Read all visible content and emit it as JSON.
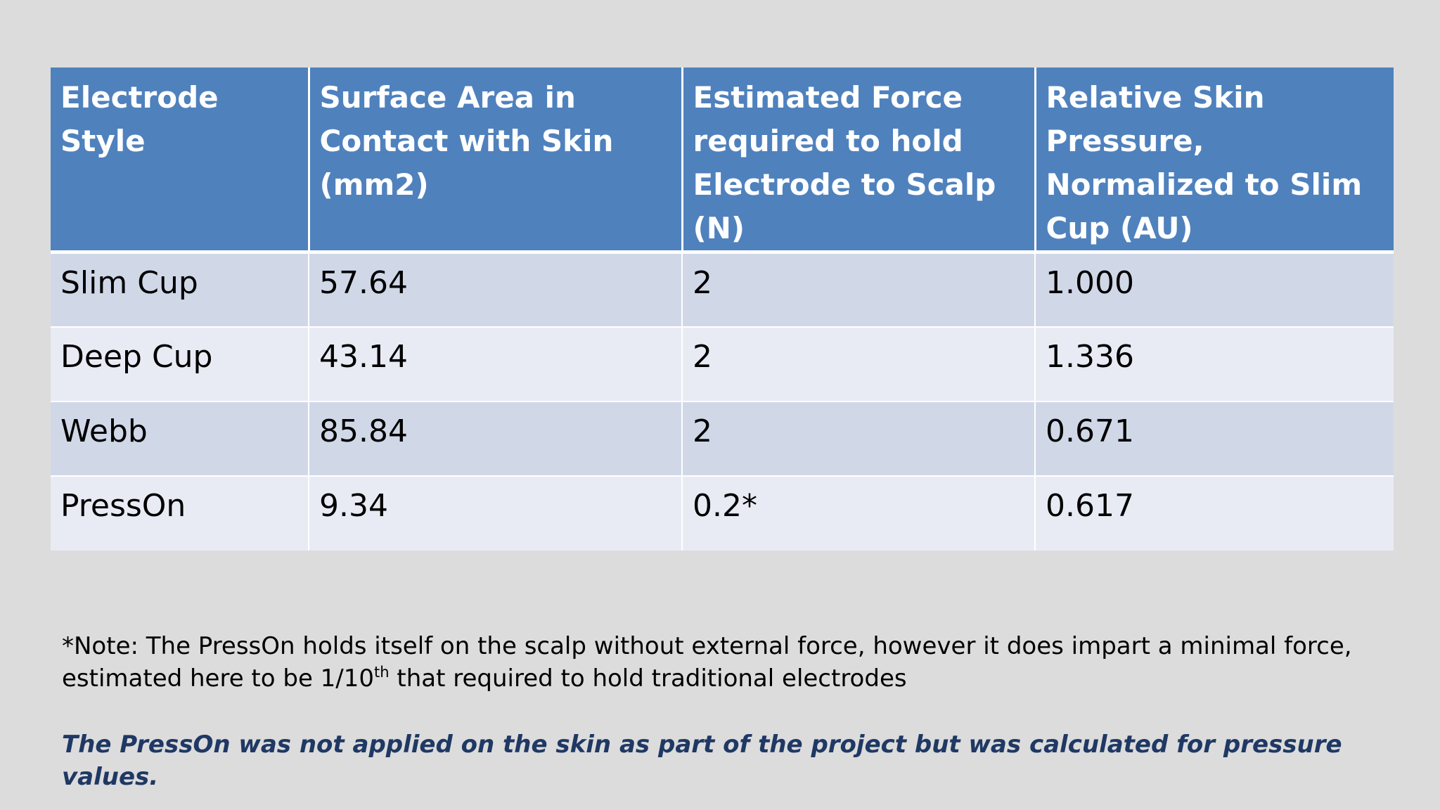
{
  "table": {
    "headers": [
      "Electrode Style",
      "Surface Area in Contact with Skin (mm2)",
      "Estimated Force required to hold Electrode to Scalp (N)",
      "Relative Skin Pressure, Normalized to Slim Cup (AU)"
    ],
    "rows": [
      [
        "Slim Cup",
        "57.64",
        "2",
        "1.000"
      ],
      [
        "Deep Cup",
        "43.14",
        "2",
        "1.336"
      ],
      [
        "Webb",
        "85.84",
        "2",
        "0.671"
      ],
      [
        "PressOn",
        "9.34",
        "0.2*",
        "0.617"
      ]
    ]
  },
  "note": {
    "part1": "*Note: The PressOn holds itself on the scalp without external force, however it does impart a minimal force, estimated here to be 1/10",
    "superscript": "th",
    "part2": " that required to hold traditional electrodes"
  },
  "italic_note": "The PressOn was not applied on the skin as part of the project but was calculated for pressure values.",
  "colors": {
    "background": "#dcdcdc",
    "header_fill": "#4f81bd",
    "row_odd_fill": "#d0d8e8",
    "row_even_fill": "#e9ebf4",
    "italic_note_text": "#1f3864"
  }
}
